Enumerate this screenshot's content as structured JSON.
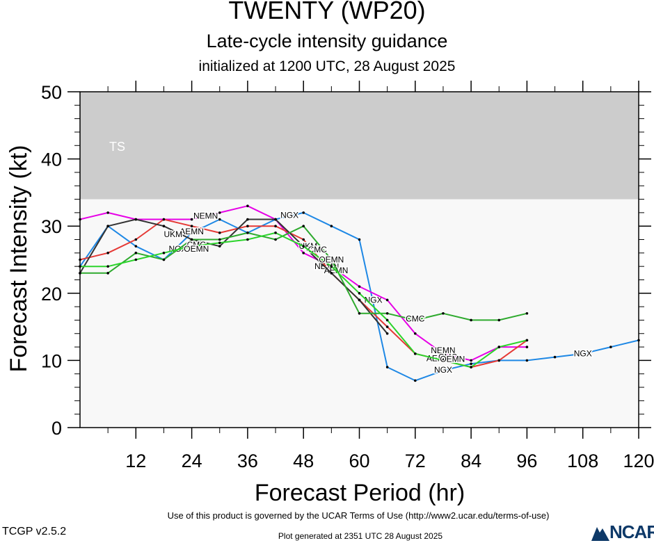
{
  "header": {
    "title": "TWENTY (WP20)",
    "subtitle": "Late-cycle intensity guidance",
    "initialized": "initialized at 1200 UTC, 28 August 2025"
  },
  "footer": {
    "terms": "Use of this product is governed by the UCAR Terms of Use (http://www2.ucar.edu/terms-of-use)",
    "version": "TCGP v2.5.2",
    "generated": "Plot generated at 2351 UTC   28 August 2025",
    "logo_text": "NCAR"
  },
  "chart_data": {
    "type": "line",
    "title": "TWENTY (WP20)",
    "xlabel": "Forecast Period (hr)",
    "ylabel": "Forecast Intensity (kt)",
    "xlim": [
      0,
      120
    ],
    "ylim": [
      0,
      50
    ],
    "xticks": [
      12,
      24,
      36,
      48,
      60,
      72,
      84,
      96,
      108,
      120
    ],
    "yticks": [
      0,
      10,
      20,
      30,
      40,
      50
    ],
    "bands": [
      {
        "label": "TS",
        "from": 34,
        "to": 50,
        "color": "#cccccc"
      }
    ],
    "plot_background": "#f8f8f8",
    "series": [
      {
        "name": "NGX",
        "color": "#1e88e5",
        "points": [
          [
            0,
            24
          ],
          [
            6,
            30
          ],
          [
            12,
            27
          ],
          [
            18,
            25
          ],
          [
            24,
            29
          ],
          [
            30,
            31
          ],
          [
            36,
            29
          ],
          [
            42,
            31
          ],
          [
            48,
            32
          ],
          [
            54,
            30
          ],
          [
            60,
            28
          ],
          [
            66,
            9
          ],
          [
            72,
            7
          ],
          [
            78,
            8.5
          ],
          [
            84,
            9.5
          ],
          [
            90,
            10
          ],
          [
            96,
            10
          ],
          [
            102,
            10.5
          ],
          [
            108,
            11
          ],
          [
            114,
            12
          ],
          [
            120,
            13
          ]
        ],
        "labels": [
          {
            "text": "NGX",
            "x": 45,
            "y": 31.6
          },
          {
            "text": "NGX",
            "x": 63,
            "y": 19
          },
          {
            "text": "NGX",
            "x": 78,
            "y": 8.6
          },
          {
            "text": "NGX",
            "x": 108,
            "y": 11
          },
          {
            "text": "NGX",
            "x": 21,
            "y": 26.6
          }
        ]
      },
      {
        "name": "NEMN",
        "color": "#e600e6",
        "points": [
          [
            0,
            31
          ],
          [
            6,
            32
          ],
          [
            12,
            31
          ],
          [
            18,
            31
          ],
          [
            24,
            31
          ],
          [
            30,
            32
          ],
          [
            36,
            33
          ],
          [
            42,
            31
          ],
          [
            48,
            26
          ],
          [
            54,
            24
          ],
          [
            60,
            21
          ],
          [
            66,
            19
          ],
          [
            72,
            14
          ],
          [
            78,
            11
          ],
          [
            84,
            10
          ],
          [
            90,
            12
          ],
          [
            96,
            12
          ]
        ],
        "labels": [
          {
            "text": "NEMN",
            "x": 27,
            "y": 31.5
          },
          {
            "text": "NEMN",
            "x": 53,
            "y": 24
          },
          {
            "text": "NEMN",
            "x": 78,
            "y": 11.5
          }
        ]
      },
      {
        "name": "AEMN",
        "color": "#e53935",
        "points": [
          [
            0,
            25
          ],
          [
            6,
            26
          ],
          [
            12,
            28
          ],
          [
            18,
            31
          ],
          [
            24,
            30
          ],
          [
            30,
            29
          ],
          [
            36,
            30
          ],
          [
            42,
            30
          ],
          [
            48,
            28
          ],
          [
            54,
            23
          ],
          [
            60,
            19
          ],
          [
            66,
            15
          ],
          [
            72,
            11
          ],
          [
            78,
            10
          ],
          [
            84,
            9
          ],
          [
            90,
            10
          ],
          [
            96,
            13
          ]
        ],
        "labels": [
          {
            "text": "AEMN",
            "x": 24,
            "y": 29.2
          },
          {
            "text": "AEMN",
            "x": 55,
            "y": 23.4
          },
          {
            "text": "AEMN",
            "x": 77,
            "y": 10.3
          }
        ]
      },
      {
        "name": "UKM",
        "color": "#333333",
        "points": [
          [
            0,
            23
          ],
          [
            6,
            30
          ],
          [
            12,
            31
          ],
          [
            18,
            30
          ],
          [
            24,
            28
          ],
          [
            30,
            27
          ],
          [
            36,
            31
          ],
          [
            42,
            31
          ],
          [
            48,
            27
          ],
          [
            54,
            23
          ],
          [
            60,
            19
          ],
          [
            66,
            14
          ]
        ],
        "labels": [
          {
            "text": "UKM",
            "x": 20,
            "y": 28.8
          },
          {
            "text": "UKM",
            "x": 49,
            "y": 27
          }
        ]
      },
      {
        "name": "CMC",
        "color": "#2eaa2e",
        "points": [
          [
            0,
            23
          ],
          [
            6,
            23
          ],
          [
            12,
            26
          ],
          [
            18,
            25
          ],
          [
            24,
            28
          ],
          [
            30,
            28
          ],
          [
            36,
            29
          ],
          [
            42,
            28
          ],
          [
            48,
            30
          ],
          [
            54,
            25
          ],
          [
            60,
            17
          ],
          [
            66,
            17
          ],
          [
            72,
            16
          ],
          [
            78,
            17
          ],
          [
            84,
            16
          ],
          [
            90,
            16
          ],
          [
            96,
            17
          ]
        ],
        "labels": [
          {
            "text": "CMC",
            "x": 25,
            "y": 27.2
          },
          {
            "text": "CMC",
            "x": 51,
            "y": 26.5
          },
          {
            "text": "CMC",
            "x": 72,
            "y": 16.2
          },
          {
            "text": "CMC",
            "x": 79,
            "y": 10.5
          }
        ]
      },
      {
        "name": "OEMN",
        "color": "#2bd42b",
        "points": [
          [
            0,
            24
          ],
          [
            6,
            24
          ],
          [
            12,
            25
          ],
          [
            18,
            26
          ],
          [
            24,
            27
          ],
          [
            30,
            27.5
          ],
          [
            36,
            28
          ],
          [
            42,
            29
          ],
          [
            48,
            27
          ],
          [
            54,
            24
          ],
          [
            60,
            20
          ],
          [
            66,
            16
          ],
          [
            72,
            11
          ],
          [
            78,
            10
          ],
          [
            84,
            9
          ],
          [
            90,
            12
          ],
          [
            96,
            13
          ]
        ],
        "labels": [
          {
            "text": "OEMN",
            "x": 25,
            "y": 26.6
          },
          {
            "text": "OEMN",
            "x": 54,
            "y": 25
          },
          {
            "text": "OEMN",
            "x": 80,
            "y": 10.2
          }
        ]
      }
    ]
  }
}
